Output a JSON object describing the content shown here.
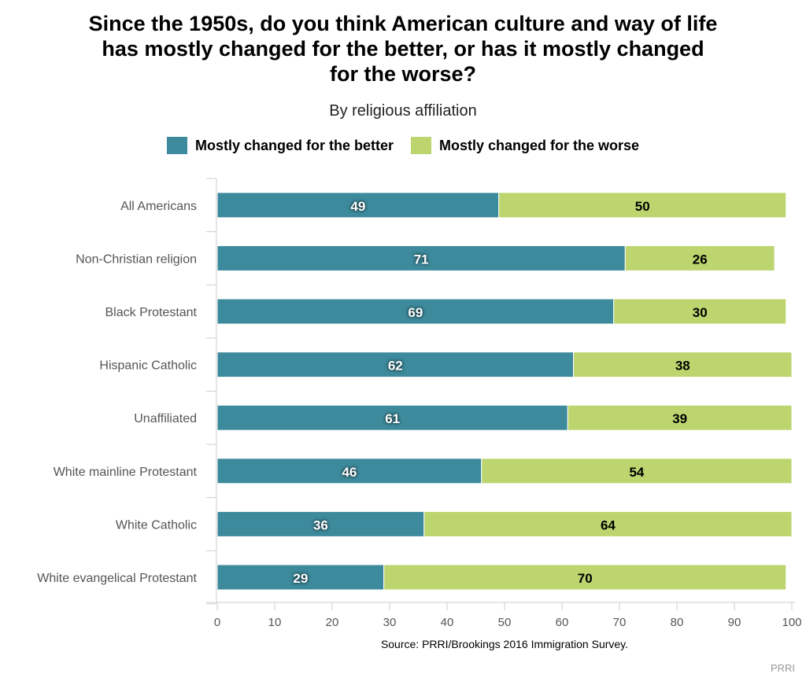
{
  "chart_data": {
    "type": "bar",
    "orientation": "horizontal",
    "stacked": true,
    "title_lines": [
      "Since the 1950s, do you think American culture and way of life",
      "has mostly changed for the better, or has it mostly changed",
      "for the worse?"
    ],
    "subtitle": "By religious affiliation",
    "categories": [
      "All Americans",
      "Non-Christian religion",
      "Black Protestant",
      "Hispanic Catholic",
      "Unaffiliated",
      "White mainline Protestant",
      "White Catholic",
      "White evangelical Protestant"
    ],
    "series": [
      {
        "name": "Mostly changed for the better",
        "color": "#3d8a9c",
        "values": [
          49,
          71,
          69,
          62,
          61,
          46,
          36,
          29
        ]
      },
      {
        "name": "Mostly changed for the worse",
        "color": "#bcd56f",
        "values": [
          50,
          26,
          30,
          38,
          39,
          54,
          64,
          70
        ]
      }
    ],
    "xlim": [
      0,
      100
    ],
    "xticks": [
      0,
      10,
      20,
      30,
      40,
      50,
      60,
      70,
      80,
      90,
      100
    ],
    "grid": false,
    "legend": "top-center",
    "source": "Source: PRRI/Brookings 2016 Immigration Survey.",
    "brand": "PRRI"
  }
}
